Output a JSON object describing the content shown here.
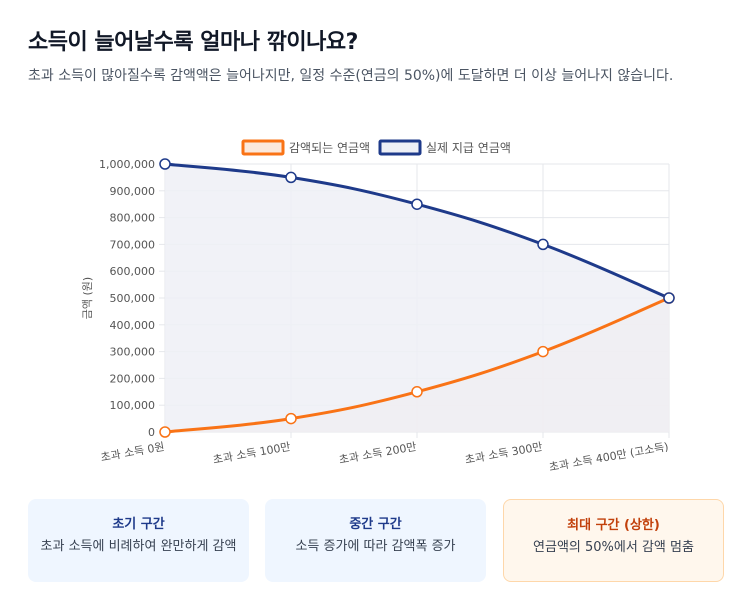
{
  "header": {
    "title": "소득이 늘어날수록 얼마나 깎이나요?",
    "subtitle": "초과 소득이 많아질수록 감액액은 늘어나지만, 일정 수준(연금의 50%)에 도달하면 더 이상 늘어나지 않습니다."
  },
  "chart_data": {
    "type": "line",
    "categories": [
      "초과 소득 0원",
      "초과 소득 100만",
      "초과 소득 200만",
      "초과 소득 300만",
      "초과 소득 400만 (고소득)"
    ],
    "series": [
      {
        "name": "감액되는 연금액",
        "values": [
          0,
          50000,
          150000,
          300000,
          500000
        ],
        "color": "#f97316",
        "fill": "#f3e3dc"
      },
      {
        "name": "실제 지급 연금액",
        "values": [
          1000000,
          950000,
          850000,
          700000,
          500000
        ],
        "color": "#1e3a8a",
        "fill": "#eef0f6"
      }
    ],
    "ylabel": "금액 (원)",
    "xlabel": "",
    "ylim": [
      0,
      1000000
    ],
    "yticks": [
      0,
      100000,
      200000,
      300000,
      400000,
      500000,
      600000,
      700000,
      800000,
      900000,
      1000000
    ],
    "ytick_labels": [
      "0",
      "100,000",
      "200,000",
      "300,000",
      "400,000",
      "500,000",
      "600,000",
      "700,000",
      "800,000",
      "900,000",
      "1,000,000"
    ],
    "grid": true,
    "legend": "top-center"
  },
  "cards": [
    {
      "title": "초기 구간",
      "desc": "초과 소득에 비례하여 완만하게 감액"
    },
    {
      "title": "중간 구간",
      "desc": "소득 증가에 따라 감액폭 증가"
    },
    {
      "title": "최대 구간 (상한)",
      "desc": "연금액의 50%에서 감액 멈춤"
    }
  ],
  "colors": {
    "orange": "#f97316",
    "navy": "#1e3a8a",
    "grid": "#e5e7eb"
  }
}
